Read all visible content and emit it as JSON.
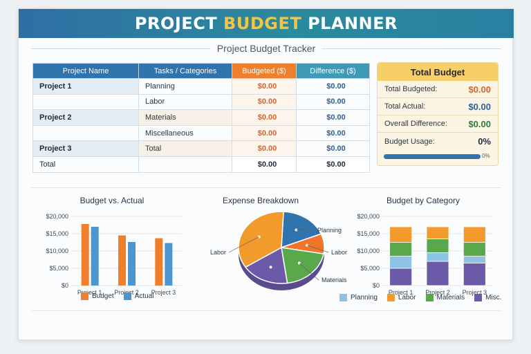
{
  "header": {
    "title_part1": "PROJECT ",
    "title_highlight": "BUDGET",
    "title_part2": " PLANNER",
    "subtitle": "Project Budget Tracker"
  },
  "tracker": {
    "columns": [
      "Project Name",
      "Tasks / Categories",
      "Budgeted ($)",
      "Difference ($)"
    ],
    "rows": [
      {
        "project": "Project 1",
        "category": "Planning",
        "budgeted": "$0.00",
        "difference": "$0.00"
      },
      {
        "project": "",
        "category": "Labor",
        "budgeted": "$0.00",
        "difference": "$0.00"
      },
      {
        "project": "Project 2",
        "category": "Materials",
        "budgeted": "$0.00",
        "difference": "$0.00"
      },
      {
        "project": "",
        "category": "Miscellaneous",
        "budgeted": "$0.00",
        "difference": "$0.00"
      },
      {
        "project": "Project 3",
        "category": "Total",
        "budgeted": "$0.00",
        "difference": "$0.00"
      }
    ],
    "total_row": {
      "label": "Total",
      "budgeted": "$0.00",
      "difference": "$0.00"
    }
  },
  "total_budget": {
    "title": "Total Budget",
    "rows": [
      {
        "label": "Total Budgeted:",
        "value": "$0.00"
      },
      {
        "label": "Total Actual:",
        "value": "$0.00"
      },
      {
        "label": "Overall Difference:",
        "value": "$0.00"
      },
      {
        "label": "Budget Usage:",
        "value": "0%"
      }
    ],
    "usage_bar_label": "0%",
    "usage_fraction": 0
  },
  "colors": {
    "budget": "#ef7f2a",
    "actual": "#4b95d1",
    "planning": "#8fc3e6",
    "labor": "#f39a2c",
    "materials": "#5aa84c",
    "misc": "#6b5aa8"
  },
  "chart_data": [
    {
      "type": "bar",
      "title": "Budget vs. Actual",
      "categories": [
        "Project 1",
        "Project 2",
        "Project 3"
      ],
      "series": [
        {
          "name": "Budget",
          "values": [
            17800,
            14500,
            13700
          ]
        },
        {
          "name": "Actual",
          "values": [
            17000,
            12600,
            12300
          ]
        }
      ],
      "yticks": [
        "$20,000",
        "$15,000",
        "$10,000",
        "$5,000",
        "$0"
      ],
      "ylim": [
        0,
        20000
      ],
      "legend": "bottom"
    },
    {
      "type": "pie",
      "title": "Expense Breakdown",
      "slices": [
        {
          "label": "Planning",
          "value": 18
        },
        {
          "label": "Labor",
          "value": 9
        },
        {
          "label": "Materials",
          "value": 20
        },
        {
          "label": "",
          "value": 18
        },
        {
          "label": "Labor",
          "value": 35
        }
      ]
    },
    {
      "type": "bar",
      "title": "Budget by Category",
      "categories": [
        "Project 1",
        "Project 2",
        "Project 3"
      ],
      "series": [
        {
          "name": "Planning",
          "values": [
            3500,
            2500,
            2000
          ]
        },
        {
          "name": "Labor",
          "values": [
            4500,
            3500,
            4500
          ]
        },
        {
          "name": "Materials",
          "values": [
            4000,
            4000,
            4000
          ]
        },
        {
          "name": "Misc.",
          "values": [
            5000,
            7000,
            6500
          ]
        }
      ],
      "yticks": [
        "$20,000",
        "$15,000",
        "$10,000",
        "$5,000",
        "$0"
      ],
      "ylim": [
        0,
        20000
      ],
      "stacked": true,
      "legend": "bottom"
    }
  ]
}
